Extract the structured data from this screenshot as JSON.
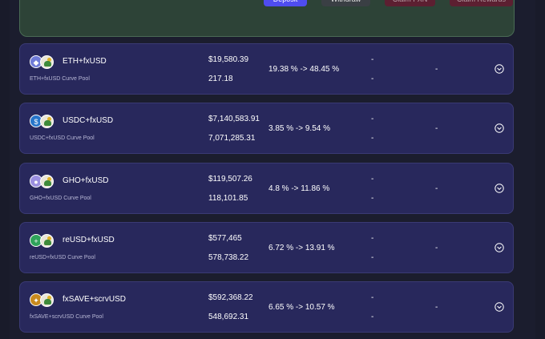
{
  "actions": {
    "deposit_label": "Deposit",
    "withdraw_label": "Withdraw",
    "claim_fxn_label": "Claim FXN",
    "claim_rewards_label": "Claim Rewards"
  },
  "pools": [
    {
      "name": "ETH+fxUSD",
      "subtitle": "ETH+fxUSD Curve Pool",
      "tvl": "$19,580.39",
      "volume": "217.18",
      "apy": "19.38 % -> 48.45 %",
      "stat_a": "-",
      "stat_b": "-",
      "stat_c": "-",
      "icon": "eth-icon",
      "icon_glyph": "◆",
      "icon_color": "#6f7bd8"
    },
    {
      "name": "USDC+fxUSD",
      "subtitle": "USDC+fxUSD Curve Pool",
      "tvl": "$7,140,583.91",
      "volume": "7,071,285.31",
      "apy": "3.85 % -> 9.54 %",
      "stat_a": "-",
      "stat_b": "-",
      "stat_c": "-",
      "icon": "usdc-icon",
      "icon_glyph": "$",
      "icon_color": "#2775ca"
    },
    {
      "name": "GHO+fxUSD",
      "subtitle": "GHO+fxUSD Curve Pool",
      "tvl": "$119,507.26",
      "volume": "118,101.85",
      "apy": "4.8 % -> 11.86 %",
      "stat_a": "-",
      "stat_b": "-",
      "stat_c": "-",
      "icon": "gho-icon",
      "icon_glyph": "●",
      "icon_color": "#9b8fe0"
    },
    {
      "name": "reUSD+fxUSD",
      "subtitle": "reUSD+fxUSD Curve Pool",
      "tvl": "$577,465",
      "volume": "578,738.22",
      "apy": "6.72 % -> 13.91 %",
      "stat_a": "-",
      "stat_b": "-",
      "stat_c": "-",
      "icon": "reusd-icon",
      "icon_glyph": "+",
      "icon_color": "#2fa35a"
    },
    {
      "name": "fxSAVE+scrvUSD",
      "subtitle": "fxSAVE+scrvUSD Curve Pool",
      "tvl": "$592,368.22",
      "volume": "548,692.31",
      "apy": "6.65 % -> 10.57 %",
      "stat_a": "-",
      "stat_b": "-",
      "stat_c": "-",
      "icon": "fxsave-icon",
      "icon_glyph": "✦",
      "icon_color": "#c98a1e"
    }
  ]
}
